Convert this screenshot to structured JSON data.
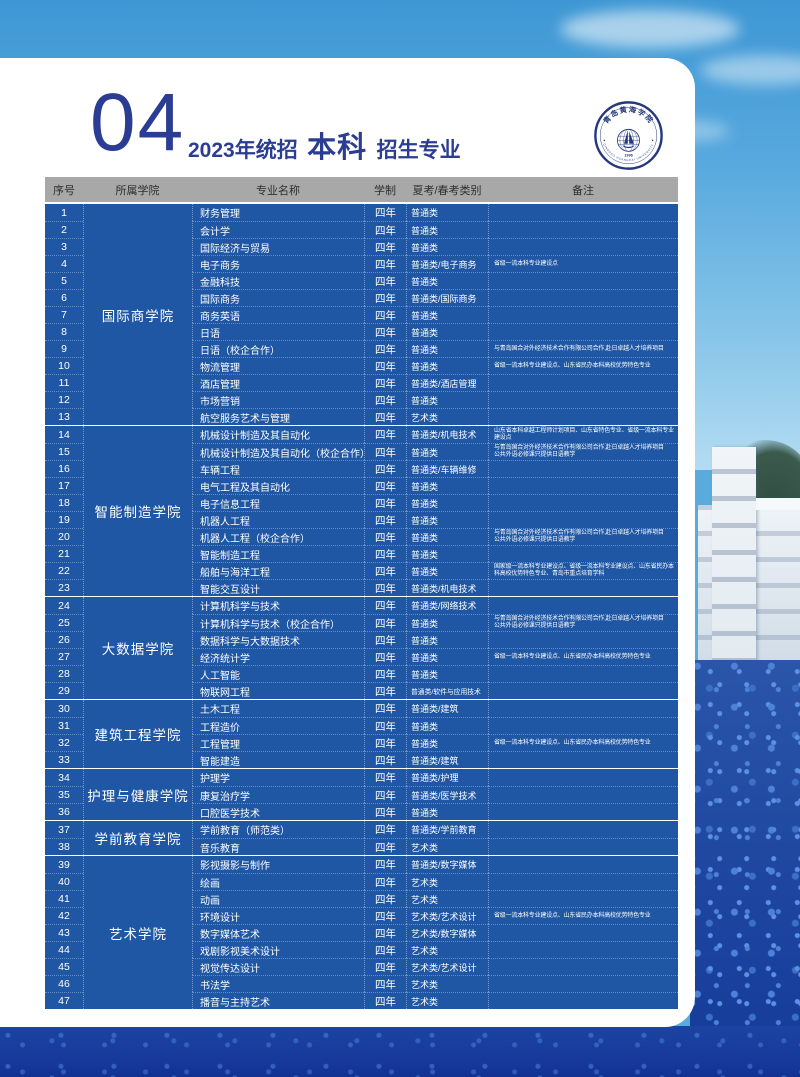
{
  "page": {
    "section_number": "04",
    "title_prefix": "2023年统招",
    "title_highlight": "本科",
    "title_suffix": "招生专业"
  },
  "logo": {
    "name_cn": "青岛黄海学院",
    "name_en": "QINGDAO HUANGHAI UNIVERSITY",
    "year": "1996"
  },
  "colors": {
    "title_navy": "#2b3d92",
    "table_blue": "#1f57a4",
    "header_gray": "#a8a8a8",
    "sky_blue": "#57a9de",
    "water_navy": "#16399b"
  },
  "table": {
    "headers": [
      "序号",
      "所属学院",
      "专业名称",
      "学制",
      "夏考/春考类别",
      "备注"
    ],
    "groups": [
      {
        "college": "国际商学院",
        "rows": [
          {
            "no": "1",
            "major": "财务管理",
            "duration": "四年",
            "category": "普通类",
            "remark": ""
          },
          {
            "no": "2",
            "major": "会计学",
            "duration": "四年",
            "category": "普通类",
            "remark": ""
          },
          {
            "no": "3",
            "major": "国际经济与贸易",
            "duration": "四年",
            "category": "普通类",
            "remark": ""
          },
          {
            "no": "4",
            "major": "电子商务",
            "duration": "四年",
            "category": "普通类/电子商务",
            "remark": "省级一流本科专业建设点"
          },
          {
            "no": "5",
            "major": "金融科技",
            "duration": "四年",
            "category": "普通类",
            "remark": ""
          },
          {
            "no": "6",
            "major": "国际商务",
            "duration": "四年",
            "category": "普通类/国际商务",
            "remark": ""
          },
          {
            "no": "7",
            "major": "商务英语",
            "duration": "四年",
            "category": "普通类",
            "remark": ""
          },
          {
            "no": "8",
            "major": "日语",
            "duration": "四年",
            "category": "普通类",
            "remark": ""
          },
          {
            "no": "9",
            "major": "日语（校企合作）",
            "duration": "四年",
            "category": "普通类",
            "remark": "与青岛国合对外经济技术合作有限公司合作,赴日卓越人才培养项目"
          },
          {
            "no": "10",
            "major": "物流管理",
            "duration": "四年",
            "category": "普通类",
            "remark": "省级一流本科专业建设点、山东省民办本科高校优势特色专业"
          },
          {
            "no": "11",
            "major": "酒店管理",
            "duration": "四年",
            "category": "普通类/酒店管理",
            "remark": ""
          },
          {
            "no": "12",
            "major": "市场营销",
            "duration": "四年",
            "category": "普通类",
            "remark": ""
          },
          {
            "no": "13",
            "major": "航空服务艺术与管理",
            "duration": "四年",
            "category": "艺术类",
            "remark": ""
          }
        ]
      },
      {
        "college": "智能制造学院",
        "rows": [
          {
            "no": "14",
            "major": "机械设计制造及其自动化",
            "duration": "四年",
            "category": "普通类/机电技术",
            "remark": "山东省本科卓越工程师计划项目、山东省特色专业、省级一流本科专业建设点"
          },
          {
            "no": "15",
            "major": "机械设计制造及其自动化（校企合作）",
            "duration": "四年",
            "category": "普通类",
            "remark": "与青岛国合对外经济技术合作有限公司合作,赴日卓越人才培养项目\n公共外语必修课只提供日语教学"
          },
          {
            "no": "16",
            "major": "车辆工程",
            "duration": "四年",
            "category": "普通类/车辆维修",
            "remark": ""
          },
          {
            "no": "17",
            "major": "电气工程及其自动化",
            "duration": "四年",
            "category": "普通类",
            "remark": ""
          },
          {
            "no": "18",
            "major": "电子信息工程",
            "duration": "四年",
            "category": "普通类",
            "remark": ""
          },
          {
            "no": "19",
            "major": "机器人工程",
            "duration": "四年",
            "category": "普通类",
            "remark": ""
          },
          {
            "no": "20",
            "major": "机器人工程（校企合作）",
            "duration": "四年",
            "category": "普通类",
            "remark": "与青岛国合对外经济技术合作有限公司合作,赴日卓越人才培养项目\n公共外语必修课只提供日语教学"
          },
          {
            "no": "21",
            "major": "智能制造工程",
            "duration": "四年",
            "category": "普通类",
            "remark": ""
          },
          {
            "no": "22",
            "major": "船舶与海洋工程",
            "duration": "四年",
            "category": "普通类",
            "remark": "国家级一流本科专业建设点、省级一流本科专业建设点、山东省民办本科高校优势特色专业、青岛市重点培育学科"
          },
          {
            "no": "23",
            "major": "智能交互设计",
            "duration": "四年",
            "category": "普通类/机电技术",
            "remark": ""
          }
        ]
      },
      {
        "college": "大数据学院",
        "rows": [
          {
            "no": "24",
            "major": "计算机科学与技术",
            "duration": "四年",
            "category": "普通类/网络技术",
            "remark": ""
          },
          {
            "no": "25",
            "major": "计算机科学与技术（校企合作）",
            "duration": "四年",
            "category": "普通类",
            "remark": "与青岛国合对外经济技术合作有限公司合作,赴日卓越人才培养项目\n公共外语必修课只提供日语教学"
          },
          {
            "no": "26",
            "major": "数据科学与大数据技术",
            "duration": "四年",
            "category": "普通类",
            "remark": ""
          },
          {
            "no": "27",
            "major": "经济统计学",
            "duration": "四年",
            "category": "普通类",
            "remark": "省级一流本科专业建设点、山东省民办本科高校优势特色专业"
          },
          {
            "no": "28",
            "major": "人工智能",
            "duration": "四年",
            "category": "普通类",
            "remark": ""
          },
          {
            "no": "29",
            "major": "物联网工程",
            "duration": "四年",
            "category": "普通类/软件与应用技术",
            "remark": ""
          }
        ]
      },
      {
        "college": "建筑工程学院",
        "rows": [
          {
            "no": "30",
            "major": "土木工程",
            "duration": "四年",
            "category": "普通类/建筑",
            "remark": ""
          },
          {
            "no": "31",
            "major": "工程造价",
            "duration": "四年",
            "category": "普通类",
            "remark": ""
          },
          {
            "no": "32",
            "major": "工程管理",
            "duration": "四年",
            "category": "普通类",
            "remark": "省级一流本科专业建设点、山东省民办本科高校优势特色专业"
          },
          {
            "no": "33",
            "major": "智能建造",
            "duration": "四年",
            "category": "普通类/建筑",
            "remark": ""
          }
        ]
      },
      {
        "college": "护理与健康学院",
        "rows": [
          {
            "no": "34",
            "major": "护理学",
            "duration": "四年",
            "category": "普通类/护理",
            "remark": ""
          },
          {
            "no": "35",
            "major": "康复治疗学",
            "duration": "四年",
            "category": "普通类/医学技术",
            "remark": ""
          },
          {
            "no": "36",
            "major": "口腔医学技术",
            "duration": "四年",
            "category": "普通类",
            "remark": ""
          }
        ]
      },
      {
        "college": "学前教育学院",
        "rows": [
          {
            "no": "37",
            "major": "学前教育（师范类）",
            "duration": "四年",
            "category": "普通类/学前教育",
            "remark": ""
          },
          {
            "no": "38",
            "major": "音乐教育",
            "duration": "四年",
            "category": "艺术类",
            "remark": ""
          }
        ]
      },
      {
        "college": "艺术学院",
        "rows": [
          {
            "no": "39",
            "major": "影视摄影与制作",
            "duration": "四年",
            "category": "普通类/数字媒体",
            "remark": ""
          },
          {
            "no": "40",
            "major": "绘画",
            "duration": "四年",
            "category": "艺术类",
            "remark": ""
          },
          {
            "no": "41",
            "major": "动画",
            "duration": "四年",
            "category": "艺术类",
            "remark": ""
          },
          {
            "no": "42",
            "major": "环境设计",
            "duration": "四年",
            "category": "艺术类/艺术设计",
            "remark": "省级一流本科专业建设点、山东省民办本科高校优势特色专业"
          },
          {
            "no": "43",
            "major": "数字媒体艺术",
            "duration": "四年",
            "category": "艺术类/数字媒体",
            "remark": ""
          },
          {
            "no": "44",
            "major": "戏剧影视美术设计",
            "duration": "四年",
            "category": "艺术类",
            "remark": ""
          },
          {
            "no": "45",
            "major": "视觉传达设计",
            "duration": "四年",
            "category": "艺术类/艺术设计",
            "remark": ""
          },
          {
            "no": "46",
            "major": "书法学",
            "duration": "四年",
            "category": "艺术类",
            "remark": ""
          },
          {
            "no": "47",
            "major": "播音与主持艺术",
            "duration": "四年",
            "category": "艺术类",
            "remark": ""
          }
        ]
      }
    ]
  }
}
